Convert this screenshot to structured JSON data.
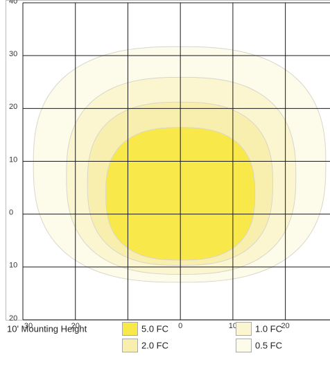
{
  "chart_data": {
    "type": "isoline",
    "legend_title": "10' Mounting Height",
    "xlim": [
      -30,
      28.5
    ],
    "ylim": [
      -20,
      40
    ],
    "xticks": [
      {
        "value": -30,
        "label": "30"
      },
      {
        "value": -20,
        "label": "20"
      },
      {
        "value": -10,
        "label": "10"
      },
      0,
      10,
      20,
      30
    ],
    "yticks": [
      40,
      30,
      20,
      10,
      0,
      {
        "value": -10,
        "label": "10"
      },
      {
        "value": -20,
        "label": "20"
      }
    ],
    "grid": true,
    "series": [
      {
        "name": "5.0 FC",
        "color": "#f9e84a",
        "xrange": [
          -14.2,
          14.2
        ],
        "yrange": [
          -8.7,
          16.4
        ]
      },
      {
        "name": "2.0 FC",
        "color": "#f8efae",
        "xrange": [
          -17.7,
          17.6
        ],
        "yrange": [
          -9.7,
          21.2
        ]
      },
      {
        "name": "1.0 FC",
        "color": "#fbf5d0",
        "xrange": [
          -21.7,
          22
        ],
        "yrange": [
          -11.4,
          25.9
        ]
      },
      {
        "name": "0.5 FC",
        "color": "#fdfbea",
        "xrange": [
          -28,
          27.7
        ],
        "yrange": [
          -12.9,
          31.7
        ]
      }
    ]
  }
}
